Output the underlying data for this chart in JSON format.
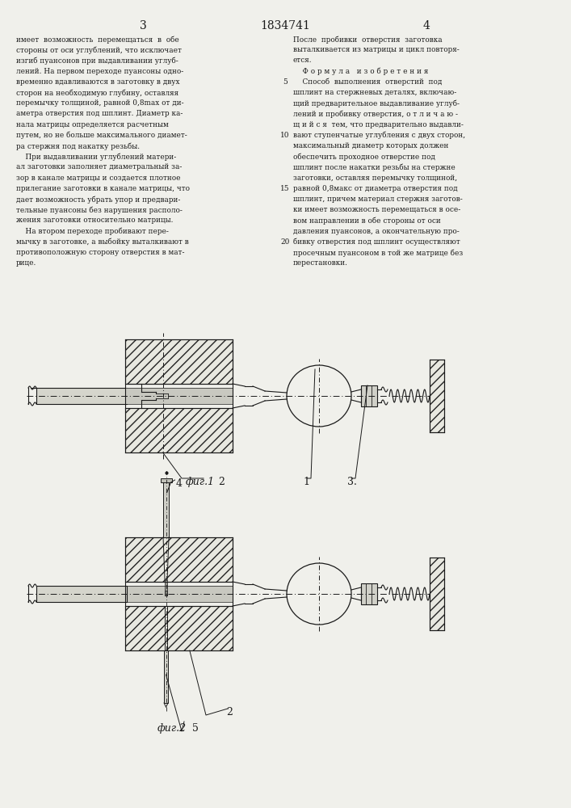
{
  "page_number_left": "3",
  "page_number_center": "1834741",
  "page_number_right": "4",
  "bg_color": "#f0f0eb",
  "text_color": "#1a1a1a",
  "left_column_text": [
    "имеет  возможность  перемещаться  в  обе",
    "стороны от оси углублений, что исключает",
    "изгиб пуансонов при выдавливании углуб-",
    "лений. На первом переходе пуансоны одно-",
    "временно вдавливаются в заготовку в двух",
    "сторон на необходимую глубину, оставляя",
    "перемычку толщиной, равной 0,8max от ди-",
    "аметра отверстия под шплинт. Диаметр ка-",
    "нала матрицы определяется расчетным",
    "путем, но не больше максимального диамет-",
    "ра стержня под накатку резьбы.",
    "    При выдавливании углублений матери-",
    "ал заготовки заполняет диаметральный за-",
    "зор в канале матрицы и создается плотное",
    "прилегание заготовки в канале матрицы, что",
    "дает возможность убрать упор и предвари-",
    "тельные пуансоны без нарушения располо-",
    "жения заготовки относительно матрицы.",
    "    На втором переходе пробивают пере-",
    "мычку в заготовке, а выбойку выталкивают в",
    "противоположную сторону отверстия в мат-",
    "рице."
  ],
  "right_column_text": [
    "После  пробивки  отверстия  заготовка",
    "выталкивается из матрицы и цикл повторя-",
    "ется.",
    "    Ф о р м у л а   и з о б р е т е н и я",
    "    Способ  выполнения  отверстий  под",
    "шплинт на стержневых деталях, включаю-",
    "щий предварительное выдавливание углуб-",
    "лений и пробивку отверстия, о т л и ч а ю -",
    "щ и й с я  тем, что предварительно выдавли-",
    "вают ступенчатые углубления с двух сторон,",
    "максимальный диаметр которых должен",
    "обеспечить проходное отверстие под",
    "шплинт после накатки резьбы на стержне",
    "заготовки, оставляя перемычку толщиной,",
    "равной 0,8макс от диаметра отверстия под",
    "шплинт, причем материал стержня заготов-",
    "ки имеет возможность перемещаться в осе-",
    "вом направлении в обе стороны от оси",
    "давления пуансонов, а окончательную про-",
    "бивку отверстия под шплинт осуществляют",
    "просечным пуансоном в той же матрице без",
    "перестановки."
  ],
  "line_numbers": [
    "5",
    "10",
    "15",
    "20"
  ],
  "fig1_label": "фиг.1",
  "fig2_label": "фиг.2",
  "label_1": "1",
  "label_2": "2",
  "label_3": "3.",
  "label_4": "4",
  "label_5": "5"
}
